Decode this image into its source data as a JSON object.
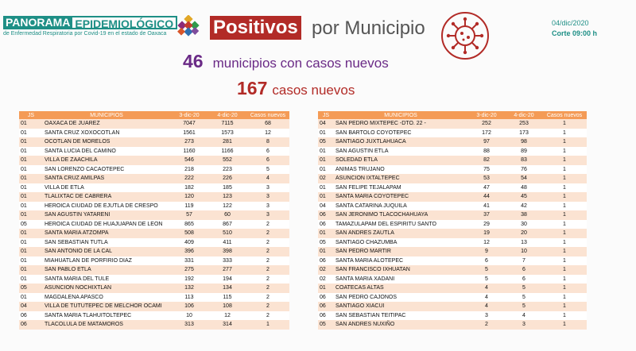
{
  "brand": {
    "panorama": "PANORAMA",
    "epidemiologico": "EPIDEMIOLÓGICO",
    "subtitle": "de Enfermedad Respiratoria por Covid-19 en el estado de Oaxaca"
  },
  "title": {
    "positivos": "Positivos",
    "rest": "por Municipio"
  },
  "date": "04/dic/2020",
  "time": "Corte 09:00 h",
  "summary": {
    "municipios_num": "46",
    "municipios_text": "municipios con casos nuevos",
    "casos_num": "167",
    "casos_text": "casos nuevos"
  },
  "colors": {
    "teal": "#1e8f86",
    "red": "#b22b27",
    "purple": "#6a2a86",
    "header_orange": "#f49b56",
    "row_shade": "#fbe3d2"
  },
  "icons": [
    "logo-icon",
    "virus-icon"
  ],
  "table": {
    "headers": [
      "JS",
      "MUNICIPIOS",
      "3-dic-20",
      "4-dic-20",
      "Casos nuevos"
    ],
    "left": [
      [
        "01",
        "OAXACA DE JUAREZ",
        "7047",
        "7115",
        "68"
      ],
      [
        "01",
        "SANTA CRUZ XOXOCOTLAN",
        "1561",
        "1573",
        "12"
      ],
      [
        "01",
        "OCOTLAN DE MORELOS",
        "273",
        "281",
        "8"
      ],
      [
        "01",
        "SANTA LUCIA DEL CAMINO",
        "1160",
        "1166",
        "6"
      ],
      [
        "01",
        "VILLA DE ZAACHILA",
        "546",
        "552",
        "6"
      ],
      [
        "01",
        "SAN LORENZO CACAOTEPEC",
        "218",
        "223",
        "5"
      ],
      [
        "01",
        "SANTA CRUZ AMILPAS",
        "222",
        "226",
        "4"
      ],
      [
        "01",
        "VILLA DE ETLA",
        "182",
        "185",
        "3"
      ],
      [
        "01",
        "TLALIXTAC DE CABRERA",
        "120",
        "123",
        "3"
      ],
      [
        "01",
        "HEROICA CIUDAD DE EJUTLA DE CRESPO",
        "119",
        "122",
        "3"
      ],
      [
        "01",
        "SAN AGUSTIN YATARENI",
        "57",
        "60",
        "3"
      ],
      [
        "05",
        "HEROICA CIUDAD DE HUAJUAPAN DE LEON",
        "865",
        "867",
        "2"
      ],
      [
        "01",
        "SANTA MARIA ATZOMPA",
        "508",
        "510",
        "2"
      ],
      [
        "01",
        "SAN SEBASTIAN TUTLA",
        "409",
        "411",
        "2"
      ],
      [
        "01",
        "SAN ANTONIO DE LA CAL",
        "396",
        "398",
        "2"
      ],
      [
        "01",
        "MIAHUATLAN DE PORFIRIO DIAZ",
        "331",
        "333",
        "2"
      ],
      [
        "01",
        "SAN PABLO ETLA",
        "275",
        "277",
        "2"
      ],
      [
        "01",
        "SANTA MARIA DEL TULE",
        "192",
        "194",
        "2"
      ],
      [
        "05",
        "ASUNCION NOCHIXTLAN",
        "132",
        "134",
        "2"
      ],
      [
        "01",
        "MAGDALENA APASCO",
        "113",
        "115",
        "2"
      ],
      [
        "04",
        "VILLA DE TUTUTEPEC DE MELCHOR OCAMI",
        "106",
        "108",
        "2"
      ],
      [
        "06",
        "SANTA MARIA TLAHUITOLTEPEC",
        "10",
        "12",
        "2"
      ],
      [
        "06",
        "TLACOLULA DE MATAMOROS",
        "313",
        "314",
        "1"
      ]
    ],
    "right": [
      [
        "04",
        "SAN PEDRO MIXTEPEC -DTO. 22 -",
        "252",
        "253",
        "1"
      ],
      [
        "01",
        "SAN BARTOLO COYOTEPEC",
        "172",
        "173",
        "1"
      ],
      [
        "05",
        "SANTIAGO JUXTLAHUACA",
        "97",
        "98",
        "1"
      ],
      [
        "01",
        "SAN AGUSTIN ETLA",
        "88",
        "89",
        "1"
      ],
      [
        "01",
        "SOLEDAD ETLA",
        "82",
        "83",
        "1"
      ],
      [
        "01",
        "ANIMAS TRUJANO",
        "75",
        "76",
        "1"
      ],
      [
        "02",
        "ASUNCION IXTALTEPEC",
        "53",
        "54",
        "1"
      ],
      [
        "01",
        "SAN FELIPE TEJALAPAM",
        "47",
        "48",
        "1"
      ],
      [
        "01",
        "SANTA MARIA COYOTEPEC",
        "44",
        "45",
        "1"
      ],
      [
        "04",
        "SANTA CATARINA JUQUILA",
        "41",
        "42",
        "1"
      ],
      [
        "06",
        "SAN JERONIMO TLACOCHAHUAYA",
        "37",
        "38",
        "1"
      ],
      [
        "06",
        "TAMAZULAPAM DEL ESPIRITU SANTO",
        "29",
        "30",
        "1"
      ],
      [
        "01",
        "SAN ANDRES ZAUTLA",
        "19",
        "20",
        "1"
      ],
      [
        "05",
        "SANTIAGO CHAZUMBA",
        "12",
        "13",
        "1"
      ],
      [
        "01",
        "SAN PEDRO MARTIR",
        "9",
        "10",
        "1"
      ],
      [
        "06",
        "SANTA MARIA ALOTEPEC",
        "6",
        "7",
        "1"
      ],
      [
        "02",
        "SAN FRANCISCO IXHUATAN",
        "5",
        "6",
        "1"
      ],
      [
        "02",
        "SANTA MARIA XADANI",
        "5",
        "6",
        "1"
      ],
      [
        "01",
        "COATECAS ALTAS",
        "4",
        "5",
        "1"
      ],
      [
        "06",
        "SAN PEDRO CAJONOS",
        "4",
        "5",
        "1"
      ],
      [
        "06",
        "SANTIAGO XIACUI",
        "4",
        "5",
        "1"
      ],
      [
        "06",
        "SAN SEBASTIAN TEITIPAC",
        "3",
        "4",
        "1"
      ],
      [
        "05",
        "SAN ANDRES NUXIÑO",
        "2",
        "3",
        "1"
      ]
    ]
  }
}
